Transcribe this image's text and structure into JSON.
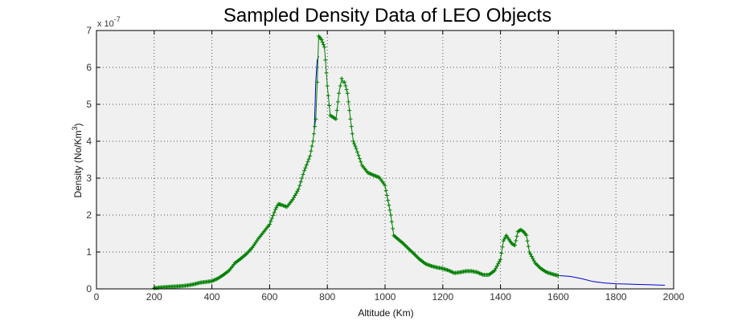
{
  "chart_data": {
    "type": "line",
    "title": "Sampled Density Data of LEO Objects",
    "xlabel": "Altitude (Km)",
    "ylabel": "Density (No/Km",
    "ylabel_sup": "3",
    "ylabel_end": ")",
    "y_exponent_base": "x 10",
    "y_exponent_power": "-7",
    "xlim": [
      0,
      2000
    ],
    "ylim": [
      0,
      7
    ],
    "x_ticks": [
      "0",
      "200",
      "400",
      "600",
      "800",
      "1000",
      "1200",
      "1400",
      "1600",
      "1800",
      "2000"
    ],
    "y_ticks": [
      "0",
      "1",
      "2",
      "3",
      "4",
      "5",
      "6",
      "7"
    ],
    "grid": true,
    "background_color": "#f0f0f0",
    "series": [
      {
        "style": "line",
        "color": "#0000cc",
        "x": [
          1580,
          1600,
          1640,
          1680,
          1720,
          1760,
          1800,
          1840,
          1880,
          1920,
          1960,
          1970
        ],
        "y": [
          0.38,
          0.36,
          0.34,
          0.28,
          0.2,
          0.16,
          0.14,
          0.13,
          0.12,
          0.11,
          0.1,
          0.1
        ]
      },
      {
        "style": "line",
        "color": "#0000cc",
        "x": [
          755,
          760,
          765,
          770
        ],
        "y": [
          4.3,
          5.6,
          6.2,
          6.3
        ]
      },
      {
        "style": "markers",
        "marker": "+",
        "color": "#008000",
        "x": [
          200,
          220,
          240,
          260,
          280,
          300,
          320,
          340,
          360,
          380,
          400,
          420,
          440,
          460,
          480,
          500,
          520,
          540,
          560,
          580,
          600,
          620,
          630,
          640,
          660,
          680,
          700,
          720,
          740,
          750,
          760,
          765,
          770,
          780,
          790,
          800,
          810,
          820,
          830,
          840,
          845,
          850,
          855,
          860,
          870,
          880,
          890,
          900,
          920,
          940,
          960,
          980,
          1000,
          1010,
          1020,
          1030,
          1040,
          1060,
          1080,
          1100,
          1120,
          1140,
          1160,
          1180,
          1200,
          1220,
          1240,
          1260,
          1280,
          1300,
          1320,
          1340,
          1360,
          1380,
          1400,
          1410,
          1420,
          1430,
          1440,
          1450,
          1460,
          1470,
          1480,
          1490,
          1500,
          1520,
          1540,
          1560,
          1580,
          1600
        ],
        "y": [
          0.02,
          0.04,
          0.05,
          0.06,
          0.07,
          0.08,
          0.1,
          0.13,
          0.17,
          0.19,
          0.21,
          0.28,
          0.38,
          0.5,
          0.7,
          0.82,
          0.95,
          1.12,
          1.35,
          1.55,
          1.75,
          2.15,
          2.3,
          2.28,
          2.22,
          2.42,
          2.7,
          3.2,
          3.6,
          4.0,
          4.6,
          5.6,
          6.85,
          6.75,
          6.55,
          5.5,
          4.7,
          4.65,
          4.6,
          5.3,
          5.5,
          5.7,
          5.6,
          5.6,
          5.3,
          4.6,
          4.0,
          3.8,
          3.35,
          3.15,
          3.08,
          3.02,
          2.8,
          2.4,
          2.0,
          1.45,
          1.38,
          1.25,
          1.1,
          0.95,
          0.8,
          0.68,
          0.62,
          0.58,
          0.55,
          0.5,
          0.43,
          0.45,
          0.48,
          0.48,
          0.45,
          0.38,
          0.38,
          0.5,
          0.8,
          1.3,
          1.45,
          1.33,
          1.22,
          1.18,
          1.55,
          1.6,
          1.55,
          1.45,
          1.0,
          0.7,
          0.55,
          0.45,
          0.4,
          0.36
        ]
      }
    ]
  }
}
